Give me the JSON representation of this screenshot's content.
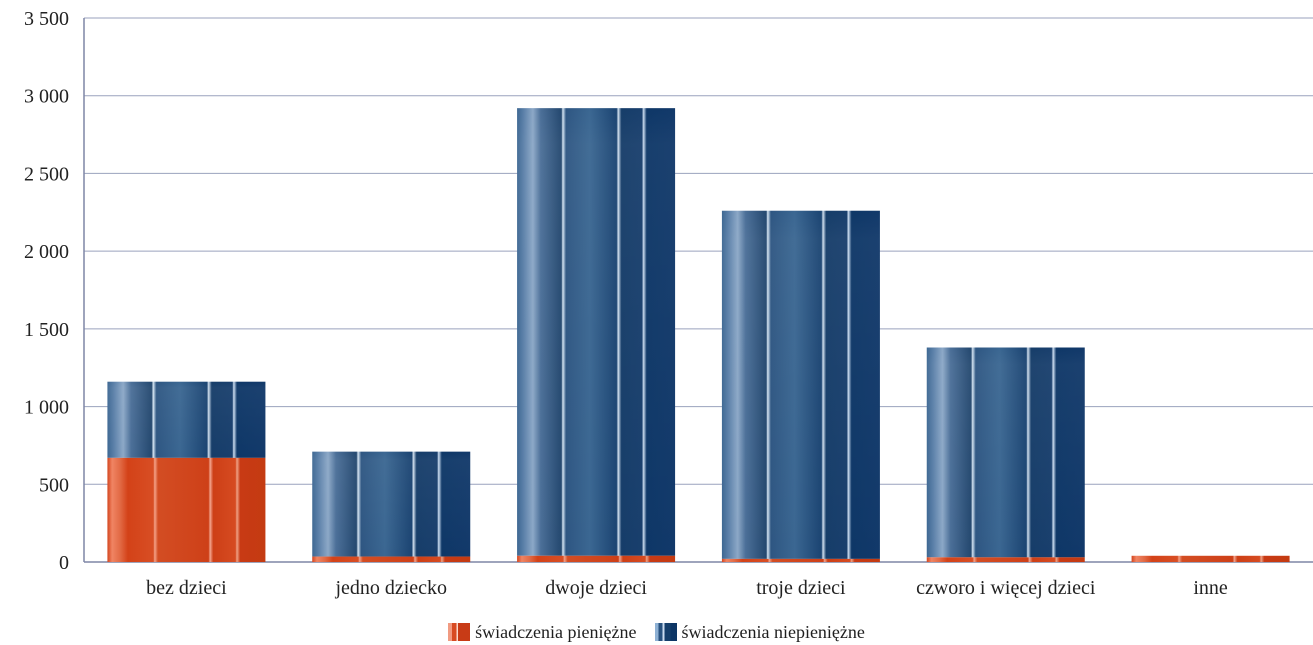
{
  "chart_data": {
    "type": "bar",
    "stacked": true,
    "title": "",
    "xlabel": "",
    "ylabel": "",
    "categories": [
      "bez dzieci",
      "jedno dziecko",
      "dwoje dzieci",
      "troje dzieci",
      "czworo i więcej dzieci",
      "inne"
    ],
    "series": [
      {
        "name": "świadczenia pieniężne",
        "values": [
          670,
          35,
          40,
          20,
          30,
          40
        ]
      },
      {
        "name": "świadczenia niepieniężne",
        "values": [
          490,
          675,
          2880,
          2240,
          1350,
          0
        ]
      }
    ],
    "yticks": [
      "0",
      "500",
      "1 000",
      "1 500",
      "2 000",
      "2 500",
      "3 000",
      "3 500"
    ],
    "ylim": [
      0,
      3500
    ],
    "grid": true,
    "legend_position": "bottom",
    "colors": {
      "cash": "#d9471b",
      "inkind": "#1b4a80",
      "grid": "#9aa2bd",
      "axis": "#7e86a6"
    }
  }
}
